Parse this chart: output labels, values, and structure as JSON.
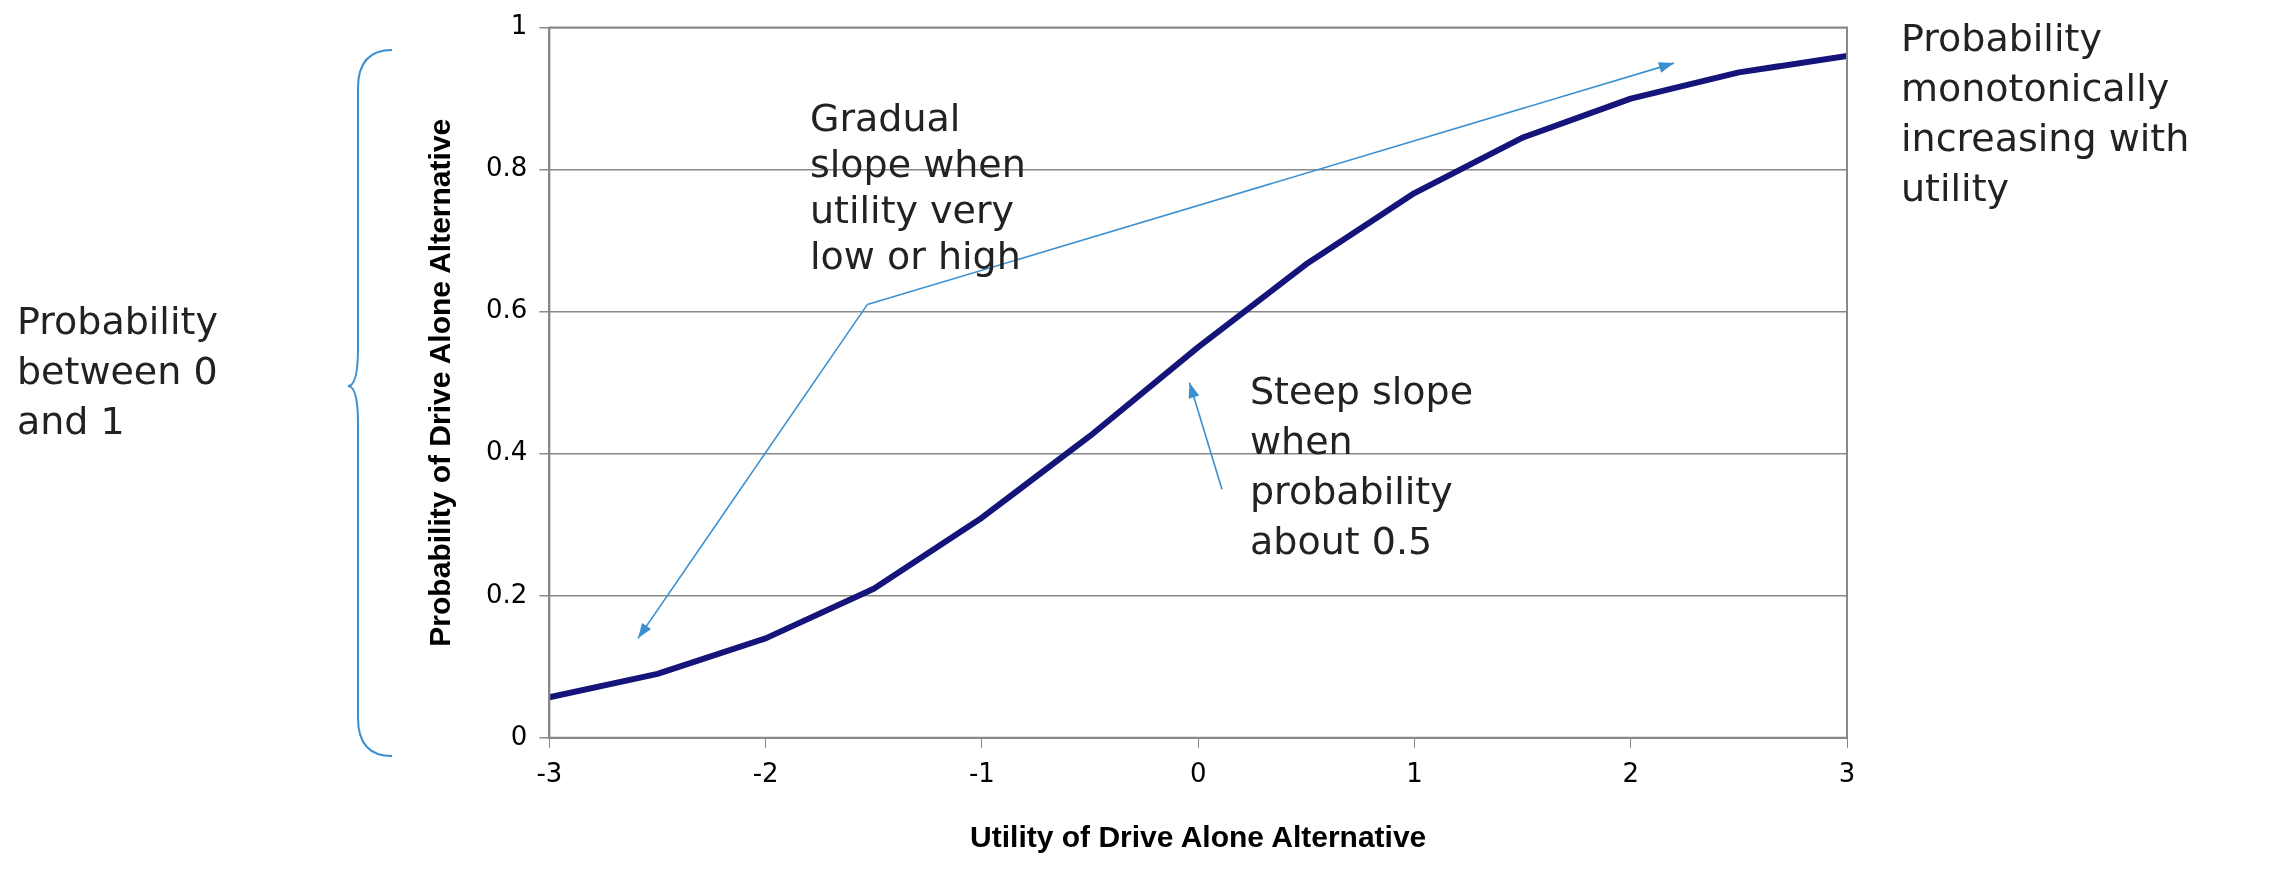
{
  "chart_data": {
    "type": "line",
    "xlabel": "Utility of Drive Alone Alternative",
    "ylabel": "Probability of Drive Alone Alternative",
    "x": [
      -3,
      -2.5,
      -2,
      -1.5,
      -1,
      -0.5,
      0,
      0.5,
      1,
      1.5,
      2,
      2.5,
      3
    ],
    "series": [
      {
        "color": "#14147a",
        "values": [
          0.057,
          0.09,
          0.14,
          0.21,
          0.31,
          0.425,
          0.55,
          0.667,
          0.767,
          0.845,
          0.9,
          0.937,
          0.96
        ]
      }
    ],
    "xlim": [
      -3,
      3
    ],
    "xticks": [
      -3,
      -2,
      -1,
      0,
      1,
      2,
      3
    ],
    "ylim": [
      0,
      1
    ],
    "yticks": [
      0,
      0.2,
      0.4,
      0.6,
      0.8,
      1
    ],
    "grid": "y",
    "legend": false,
    "marker": "none",
    "line_style": "solid",
    "annotations": [
      "Gradual slope when utility very low or high",
      "Steep slope when probability about 0.5",
      "Probability monotonically increasing with utility",
      "Probability between 0 and 1"
    ]
  }
}
